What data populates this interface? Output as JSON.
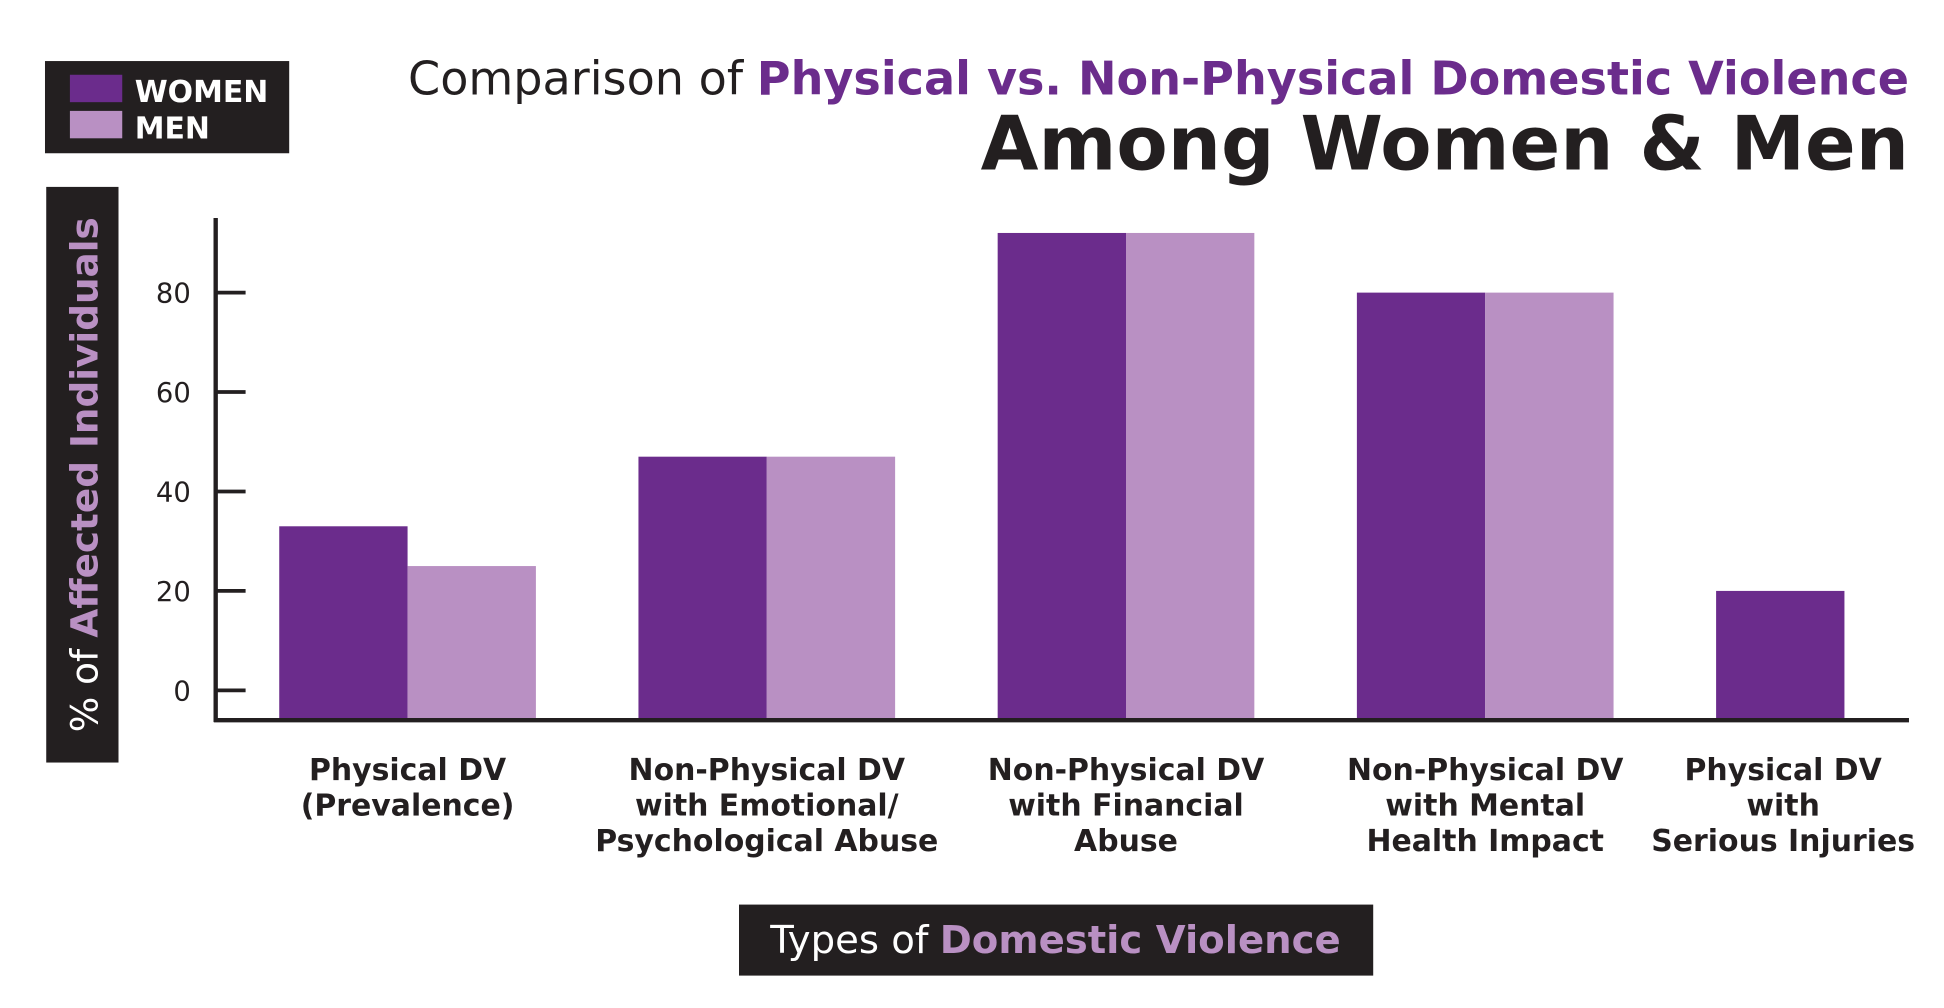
{
  "chart_data": {
    "type": "bar",
    "title": {
      "prefix": "Comparison of",
      "highlight": "Physical vs. Non-Physical Domestic Violence",
      "main": "Among Women & Men"
    },
    "x_label": {
      "prefix": "Types of",
      "highlight": "Domestic Violence"
    },
    "y_label": {
      "prefix": "% of",
      "highlight": "Affected Individuals"
    },
    "categories": [
      "Physical DV\n(Prevalence)",
      "Non-Physical DV\nwith Emotional/\nPsychological Abuse",
      "Non-Physical DV\nwith Financial\nAbuse",
      "Non-Physical DV\nwith Mental\nHealth Impact",
      "Physical DV\nwith\nSerious Injuries"
    ],
    "series": [
      {
        "name": "WOMEN",
        "color": "#6b2c8c",
        "values": [
          33,
          47,
          92,
          80,
          20
        ]
      },
      {
        "name": "MEN",
        "color": "#b990c3",
        "values": [
          25,
          47,
          92,
          80,
          null
        ]
      }
    ],
    "ylim": [
      -6,
      95
    ],
    "yticks": [
      0,
      20,
      40,
      60,
      80
    ],
    "grid": false,
    "legend": "top-left"
  }
}
